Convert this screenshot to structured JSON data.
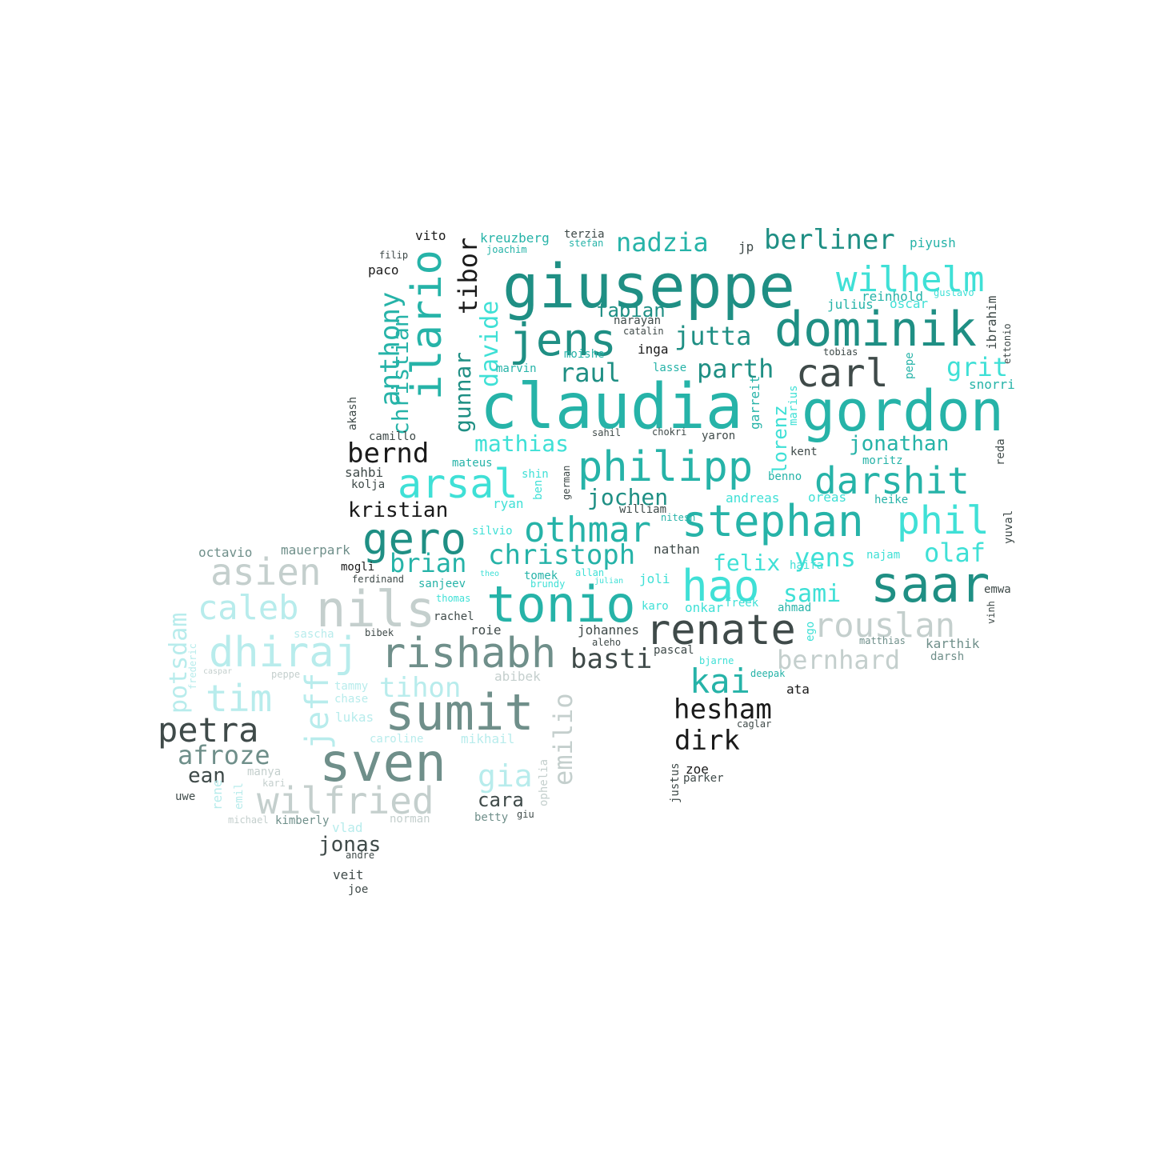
{
  "palette": {
    "teal_dark": "#1f8f84",
    "teal": "#26b3a8",
    "cyan": "#3fe0d6",
    "pale_cyan": "#b8ecec",
    "grey_green": "#6f8f8a",
    "grey_light": "#c4cfcd",
    "near_black": "#1a1a1a",
    "dark_slate": "#3f4a49",
    "background": "#ffffff"
  },
  "words": [
    {
      "text": "giuseppe",
      "color": "teal_dark"
    },
    {
      "text": "claudia",
      "color": "teal"
    },
    {
      "text": "gordon",
      "color": "teal"
    },
    {
      "text": "dominik",
      "color": "teal_dark"
    },
    {
      "text": "jens",
      "color": "teal_dark"
    },
    {
      "text": "philipp",
      "color": "teal"
    },
    {
      "text": "stephan",
      "color": "teal"
    },
    {
      "text": "darshit",
      "color": "teal"
    },
    {
      "text": "carl",
      "color": "dark_slate"
    },
    {
      "text": "wilhelm",
      "color": "cyan"
    },
    {
      "text": "nadzia",
      "color": "teal"
    },
    {
      "text": "berliner",
      "color": "teal_dark"
    },
    {
      "text": "ilario",
      "color": "teal"
    },
    {
      "text": "tibor",
      "color": "near_black"
    },
    {
      "text": "arsal",
      "color": "cyan"
    },
    {
      "text": "gero",
      "color": "teal_dark"
    },
    {
      "text": "othmar",
      "color": "teal"
    },
    {
      "text": "phil",
      "color": "cyan"
    },
    {
      "text": "saar",
      "color": "teal_dark"
    },
    {
      "text": "hao",
      "color": "cyan"
    },
    {
      "text": "renate",
      "color": "dark_slate"
    },
    {
      "text": "rouslan",
      "color": "grey_light"
    },
    {
      "text": "tonio",
      "color": "teal"
    },
    {
      "text": "nils",
      "color": "grey_light"
    },
    {
      "text": "rishabh",
      "color": "grey_green"
    },
    {
      "text": "sumit",
      "color": "grey_green"
    },
    {
      "text": "sven",
      "color": "grey_green"
    },
    {
      "text": "wilfried",
      "color": "grey_light"
    },
    {
      "text": "dhiraj",
      "color": "pale_cyan"
    },
    {
      "text": "asien",
      "color": "grey_light"
    },
    {
      "text": "caleb",
      "color": "pale_cyan"
    },
    {
      "text": "tim",
      "color": "pale_cyan"
    },
    {
      "text": "petra",
      "color": "dark_slate"
    },
    {
      "text": "afroze",
      "color": "grey_green"
    },
    {
      "text": "jeff",
      "color": "pale_cyan"
    },
    {
      "text": "potsdam",
      "color": "pale_cyan"
    },
    {
      "text": "kai",
      "color": "teal"
    },
    {
      "text": "hesham",
      "color": "near_black"
    },
    {
      "text": "dirk",
      "color": "near_black"
    },
    {
      "text": "basti",
      "color": "dark_slate"
    },
    {
      "text": "bernhard",
      "color": "grey_light"
    },
    {
      "text": "christoph",
      "color": "teal"
    },
    {
      "text": "brian",
      "color": "teal"
    },
    {
      "text": "bernd",
      "color": "near_black"
    },
    {
      "text": "anthony",
      "color": "teal"
    },
    {
      "text": "christian",
      "color": "teal"
    },
    {
      "text": "gunnar",
      "color": "teal_dark"
    },
    {
      "text": "davide",
      "color": "cyan"
    },
    {
      "text": "mathias",
      "color": "cyan"
    },
    {
      "text": "raul",
      "color": "teal_dark"
    },
    {
      "text": "parth",
      "color": "teal_dark"
    },
    {
      "text": "jutta",
      "color": "teal_dark"
    },
    {
      "text": "fabian",
      "color": "teal_dark"
    },
    {
      "text": "jochen",
      "color": "teal_dark"
    },
    {
      "text": "olaf",
      "color": "cyan"
    },
    {
      "text": "yens",
      "color": "cyan"
    },
    {
      "text": "felix",
      "color": "cyan"
    },
    {
      "text": "sami",
      "color": "cyan"
    },
    {
      "text": "jonathan",
      "color": "teal"
    },
    {
      "text": "grit",
      "color": "cyan"
    },
    {
      "text": "lorenz",
      "color": "cyan"
    },
    {
      "text": "kristian",
      "color": "near_black"
    },
    {
      "text": "tihon",
      "color": "pale_cyan"
    },
    {
      "text": "emilio",
      "color": "grey_light"
    },
    {
      "text": "gia",
      "color": "pale_cyan"
    },
    {
      "text": "cara",
      "color": "dark_slate"
    },
    {
      "text": "jonas",
      "color": "dark_slate"
    },
    {
      "text": "ean",
      "color": "dark_slate"
    },
    {
      "text": "octavio",
      "color": "grey_green"
    },
    {
      "text": "mauerpark",
      "color": "grey_green"
    },
    {
      "text": "paco",
      "color": "near_black"
    },
    {
      "text": "vito",
      "color": "near_black"
    },
    {
      "text": "filip",
      "color": "dark_slate"
    },
    {
      "text": "kreuzberg",
      "color": "teal"
    },
    {
      "text": "terzia",
      "color": "dark_slate"
    },
    {
      "text": "stefan",
      "color": "teal"
    },
    {
      "text": "joachim",
      "color": "teal"
    },
    {
      "text": "jp",
      "color": "dark_slate"
    },
    {
      "text": "piyush",
      "color": "teal"
    },
    {
      "text": "julius",
      "color": "teal"
    },
    {
      "text": "reinhold",
      "color": "teal"
    },
    {
      "text": "oscar",
      "color": "cyan"
    },
    {
      "text": "gustavo",
      "color": "cyan"
    },
    {
      "text": "ibrahim",
      "color": "dark_slate"
    },
    {
      "text": "tobias",
      "color": "dark_slate"
    },
    {
      "text": "narayan",
      "color": "dark_slate"
    },
    {
      "text": "catalin",
      "color": "dark_slate"
    },
    {
      "text": "inga",
      "color": "near_black"
    },
    {
      "text": "moishe",
      "color": "teal"
    },
    {
      "text": "marvin",
      "color": "teal"
    },
    {
      "text": "lasse",
      "color": "teal"
    },
    {
      "text": "snorri",
      "color": "teal"
    },
    {
      "text": "pepe",
      "color": "teal"
    },
    {
      "text": "garreit",
      "color": "teal"
    },
    {
      "text": "marius",
      "color": "cyan"
    },
    {
      "text": "camillo",
      "color": "dark_slate"
    },
    {
      "text": "sahil",
      "color": "dark_slate"
    },
    {
      "text": "chokri",
      "color": "dark_slate"
    },
    {
      "text": "yaron",
      "color": "dark_slate"
    },
    {
      "text": "kent",
      "color": "dark_slate"
    },
    {
      "text": "moritz",
      "color": "teal"
    },
    {
      "text": "reda",
      "color": "dark_slate"
    },
    {
      "text": "sahbi",
      "color": "dark_slate"
    },
    {
      "text": "kolja",
      "color": "dark_slate"
    },
    {
      "text": "mateus",
      "color": "teal"
    },
    {
      "text": "shin",
      "color": "cyan"
    },
    {
      "text": "ben",
      "color": "cyan"
    },
    {
      "text": "german",
      "color": "dark_slate"
    },
    {
      "text": "benno",
      "color": "teal"
    },
    {
      "text": "oreas",
      "color": "cyan"
    },
    {
      "text": "heike",
      "color": "teal"
    },
    {
      "text": "andreas",
      "color": "cyan"
    },
    {
      "text": "nitesh",
      "color": "teal"
    },
    {
      "text": "william",
      "color": "dark_slate"
    },
    {
      "text": "ryan",
      "color": "cyan"
    },
    {
      "text": "silvio",
      "color": "cyan"
    },
    {
      "text": "yuval",
      "color": "dark_slate"
    },
    {
      "text": "nathan",
      "color": "dark_slate"
    },
    {
      "text": "haifa",
      "color": "cyan"
    },
    {
      "text": "najam",
      "color": "cyan"
    },
    {
      "text": "tomek",
      "color": "teal"
    },
    {
      "text": "theo",
      "color": "cyan"
    },
    {
      "text": "allan",
      "color": "cyan"
    },
    {
      "text": "joli",
      "color": "cyan"
    },
    {
      "text": "julian",
      "color": "cyan"
    },
    {
      "text": "brundy",
      "color": "cyan"
    },
    {
      "text": "sanjeev",
      "color": "teal"
    },
    {
      "text": "thomas",
      "color": "cyan"
    },
    {
      "text": "karo",
      "color": "cyan"
    },
    {
      "text": "onkar",
      "color": "cyan"
    },
    {
      "text": "freek",
      "color": "cyan"
    },
    {
      "text": "ahmad",
      "color": "teal"
    },
    {
      "text": "ego",
      "color": "cyan"
    },
    {
      "text": "emwa",
      "color": "dark_slate"
    },
    {
      "text": "vinh",
      "color": "dark_slate"
    },
    {
      "text": "mogli",
      "color": "near_black"
    },
    {
      "text": "ferdinand",
      "color": "dark_slate"
    },
    {
      "text": "rachel",
      "color": "dark_slate"
    },
    {
      "text": "roie",
      "color": "dark_slate"
    },
    {
      "text": "johannes",
      "color": "dark_slate"
    },
    {
      "text": "aleho",
      "color": "dark_slate"
    },
    {
      "text": "pascal",
      "color": "dark_slate"
    },
    {
      "text": "bjarne",
      "color": "cyan"
    },
    {
      "text": "matthias",
      "color": "grey_green"
    },
    {
      "text": "karthik",
      "color": "grey_green"
    },
    {
      "text": "darsh",
      "color": "grey_green"
    },
    {
      "text": "deepak",
      "color": "teal"
    },
    {
      "text": "ata",
      "color": "near_black"
    },
    {
      "text": "caglar",
      "color": "dark_slate"
    },
    {
      "text": "zoe",
      "color": "near_black"
    },
    {
      "text": "justus",
      "color": "dark_slate"
    },
    {
      "text": "parker",
      "color": "dark_slate"
    },
    {
      "text": "sascha",
      "color": "pale_cyan"
    },
    {
      "text": "bibek",
      "color": "dark_slate"
    },
    {
      "text": "tammy",
      "color": "pale_cyan"
    },
    {
      "text": "chase",
      "color": "pale_cyan"
    },
    {
      "text": "lukas",
      "color": "pale_cyan"
    },
    {
      "text": "caroline",
      "color": "pale_cyan"
    },
    {
      "text": "mikhail",
      "color": "pale_cyan"
    },
    {
      "text": "abibek",
      "color": "grey_light"
    },
    {
      "text": "manya",
      "color": "grey_light"
    },
    {
      "text": "kari",
      "color": "grey_light"
    },
    {
      "text": "uwe",
      "color": "dark_slate"
    },
    {
      "text": "rene",
      "color": "pale_cyan"
    },
    {
      "text": "emil",
      "color": "pale_cyan"
    },
    {
      "text": "michael",
      "color": "grey_light"
    },
    {
      "text": "kimberly",
      "color": "grey_green"
    },
    {
      "text": "vlad",
      "color": "pale_cyan"
    },
    {
      "text": "norman",
      "color": "grey_light"
    },
    {
      "text": "betty",
      "color": "grey_green"
    },
    {
      "text": "giu",
      "color": "dark_slate"
    },
    {
      "text": "ophelia",
      "color": "grey_light"
    },
    {
      "text": "frederic",
      "color": "pale_cyan"
    },
    {
      "text": "peppe",
      "color": "grey_light"
    },
    {
      "text": "caspar",
      "color": "grey_light"
    },
    {
      "text": "andre",
      "color": "dark_slate"
    },
    {
      "text": "veit",
      "color": "dark_slate"
    },
    {
      "text": "joe",
      "color": "dark_slate"
    },
    {
      "text": "akash",
      "color": "dark_slate"
    },
    {
      "text": "ettonio",
      "color": "dark_slate"
    }
  ]
}
